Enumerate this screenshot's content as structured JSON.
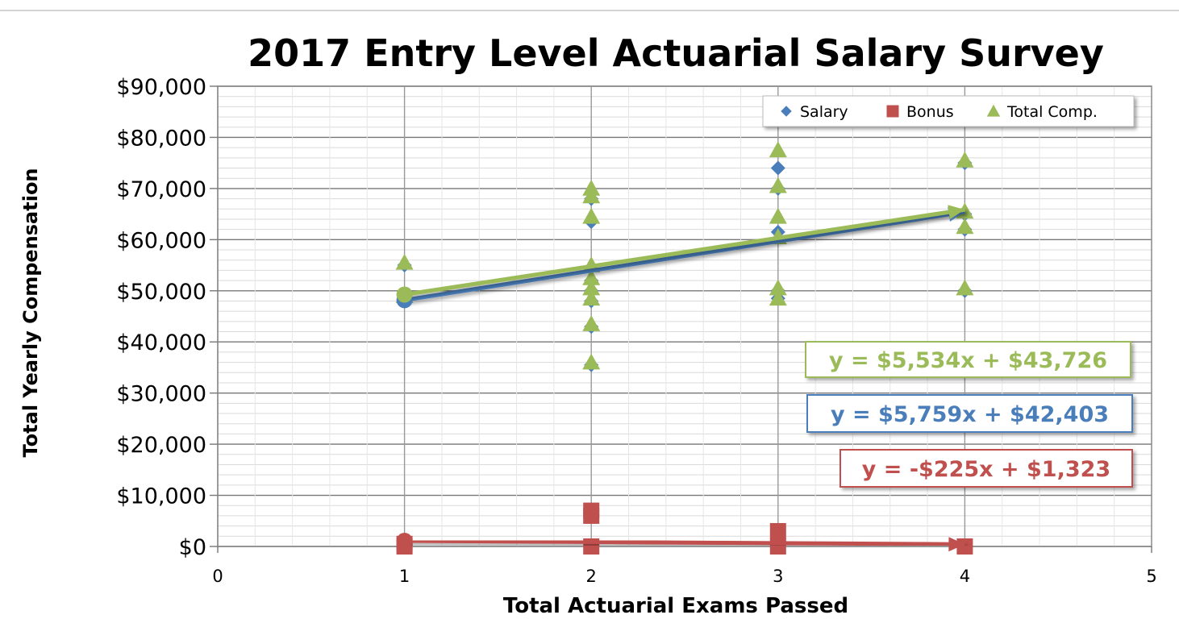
{
  "chart_data": {
    "type": "scatter",
    "title": "2017 Entry Level Actuarial Salary Survey",
    "xlabel": "Total Actuarial Exams Passed",
    "ylabel": "Total Yearly Compensation",
    "xlim": [
      0,
      5
    ],
    "ylim": [
      0,
      90000
    ],
    "x_ticks": [
      0,
      1,
      2,
      3,
      4,
      5
    ],
    "y_ticks": [
      0,
      10000,
      20000,
      30000,
      40000,
      50000,
      60000,
      70000,
      80000,
      90000
    ],
    "y_tick_labels": [
      "$0",
      "$10,000",
      "$20,000",
      "$30,000",
      "$40,000",
      "$50,000",
      "$60,000",
      "$70,000",
      "$80,000",
      "$90,000"
    ],
    "grid": true,
    "legend_position": "top-right",
    "series": [
      {
        "name": "Salary",
        "marker": "diamond",
        "color": "#4a7ebb",
        "points": [
          {
            "x": 1,
            "y": 48000
          },
          {
            "x": 1,
            "y": 55000
          },
          {
            "x": 2,
            "y": 35500
          },
          {
            "x": 2,
            "y": 43000
          },
          {
            "x": 2,
            "y": 48000
          },
          {
            "x": 2,
            "y": 50000
          },
          {
            "x": 2,
            "y": 52000
          },
          {
            "x": 2,
            "y": 63500
          },
          {
            "x": 2,
            "y": 68000
          },
          {
            "x": 3,
            "y": 48500
          },
          {
            "x": 3,
            "y": 50000
          },
          {
            "x": 3,
            "y": 61500
          },
          {
            "x": 3,
            "y": 70000
          },
          {
            "x": 3,
            "y": 74000
          },
          {
            "x": 4,
            "y": 50000
          },
          {
            "x": 4,
            "y": 62000
          },
          {
            "x": 4,
            "y": 65000
          },
          {
            "x": 4,
            "y": 75000
          }
        ]
      },
      {
        "name": "Bonus",
        "marker": "square",
        "color": "#c0504d",
        "points": [
          {
            "x": 1,
            "y": 0
          },
          {
            "x": 1,
            "y": 500
          },
          {
            "x": 2,
            "y": 0
          },
          {
            "x": 2,
            "y": 6000
          },
          {
            "x": 2,
            "y": 7000
          },
          {
            "x": 3,
            "y": 0
          },
          {
            "x": 3,
            "y": 3000
          },
          {
            "x": 4,
            "y": 0
          }
        ]
      },
      {
        "name": "Total Comp.",
        "marker": "triangle",
        "color": "#9bbb59",
        "points": [
          {
            "x": 1,
            "y": 49000
          },
          {
            "x": 1,
            "y": 55500
          },
          {
            "x": 2,
            "y": 36000
          },
          {
            "x": 2,
            "y": 43500
          },
          {
            "x": 2,
            "y": 48500
          },
          {
            "x": 2,
            "y": 50500
          },
          {
            "x": 2,
            "y": 52500
          },
          {
            "x": 2,
            "y": 55000
          },
          {
            "x": 2,
            "y": 64500
          },
          {
            "x": 2,
            "y": 68500
          },
          {
            "x": 2,
            "y": 70000
          },
          {
            "x": 3,
            "y": 48500
          },
          {
            "x": 3,
            "y": 50500
          },
          {
            "x": 3,
            "y": 60500
          },
          {
            "x": 3,
            "y": 64500
          },
          {
            "x": 3,
            "y": 70500
          },
          {
            "x": 3,
            "y": 77500
          },
          {
            "x": 4,
            "y": 50500
          },
          {
            "x": 4,
            "y": 62500
          },
          {
            "x": 4,
            "y": 65500
          },
          {
            "x": 4,
            "y": 75500
          }
        ]
      }
    ],
    "trendlines": [
      {
        "series": "Total Comp.",
        "slope": 5534,
        "intercept": 43726,
        "x_range": [
          1,
          4
        ],
        "color": "#9bbb59",
        "equation": "y = $5,534x + $43,726"
      },
      {
        "series": "Salary",
        "slope": 5759,
        "intercept": 42403,
        "x_range": [
          1,
          4
        ],
        "color": "#4a7ebb",
        "equation": "y = $5,759x + $42,403"
      },
      {
        "series": "Bonus",
        "slope": -225,
        "intercept": 1323,
        "x_range": [
          1,
          4
        ],
        "color": "#c0504d",
        "equation": "y = -$225x + $1,323"
      }
    ]
  }
}
